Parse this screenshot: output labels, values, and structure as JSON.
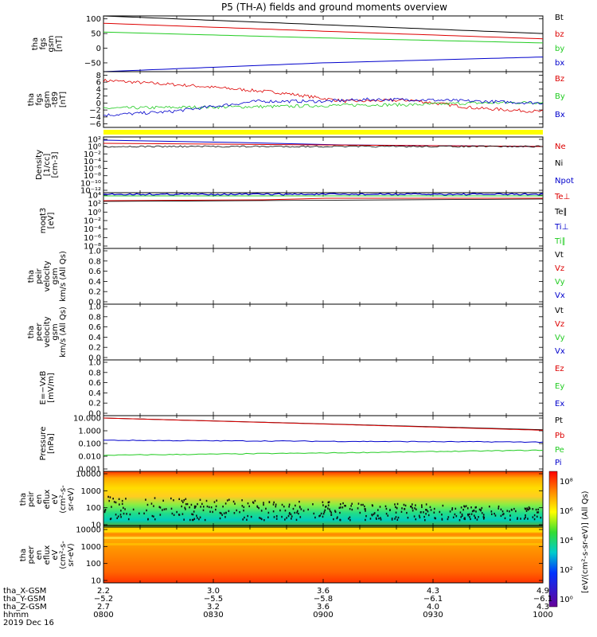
{
  "title": "P5 (TH-A) fields and ground moments overview",
  "date": "2019 Dec 16",
  "colors": {
    "black": "#000000",
    "red": "#dd0000",
    "green": "#22cc22",
    "blue": "#0000cc",
    "yellow": "#ffff00"
  },
  "chart_data": [
    {
      "type": "line",
      "panel": "fgs",
      "ylabel": [
        "tha",
        "fgs",
        "gsm",
        "[nT]"
      ],
      "yticks": [
        "100",
        "50",
        "0",
        "−50"
      ],
      "ylim": [
        -80,
        110
      ],
      "series": [
        {
          "name": "Bt",
          "color": "#000000",
          "values": [
            [
              0,
              110
            ],
            [
              0.5,
              80
            ],
            [
              1,
              50
            ]
          ]
        },
        {
          "name": "bz",
          "color": "#dd0000",
          "values": [
            [
              0,
              85
            ],
            [
              0.5,
              58
            ],
            [
              1,
              32
            ]
          ]
        },
        {
          "name": "by",
          "color": "#22cc22",
          "values": [
            [
              0,
              55
            ],
            [
              0.5,
              35
            ],
            [
              1,
              18
            ]
          ]
        },
        {
          "name": "bx",
          "color": "#0000cc",
          "values": [
            [
              0,
              -80
            ],
            [
              0.5,
              -50
            ],
            [
              1,
              -30
            ]
          ]
        }
      ]
    },
    {
      "type": "line",
      "panel": "fgs_dsl",
      "ylabel": [
        "tha",
        "fgs",
        "gsm",
        "-t89",
        "[nT]"
      ],
      "yticks": [
        "8",
        "6",
        "4",
        "2",
        "0",
        "−2",
        "−4",
        "−6"
      ],
      "ylim": [
        -7,
        9
      ],
      "series": [
        {
          "name": "Bz",
          "color": "#dd0000",
          "values": [
            [
              0,
              6.5
            ],
            [
              0.2,
              5
            ],
            [
              0.4,
              3
            ],
            [
              0.55,
              0.5
            ],
            [
              0.7,
              0.8
            ],
            [
              0.85,
              -1.5
            ],
            [
              1,
              -2.5
            ]
          ]
        },
        {
          "name": "By",
          "color": "#22cc22",
          "values": [
            [
              0,
              -1.5
            ],
            [
              0.2,
              -1.2
            ],
            [
              0.4,
              -1
            ],
            [
              0.6,
              -0.5
            ],
            [
              0.7,
              -0.5
            ],
            [
              0.85,
              0
            ],
            [
              1,
              0.2
            ]
          ]
        },
        {
          "name": "Bx",
          "color": "#0000cc",
          "values": [
            [
              0,
              -3.5
            ],
            [
              0.15,
              -2.5
            ],
            [
              0.35,
              0.5
            ],
            [
              0.5,
              0.5
            ],
            [
              0.6,
              1
            ],
            [
              0.7,
              1
            ],
            [
              0.85,
              0.5
            ],
            [
              1,
              0
            ]
          ]
        }
      ]
    },
    {
      "type": "line",
      "panel": "density",
      "ylabel": [
        "Density",
        "[1/cc]",
        "[cm-3]"
      ],
      "yticks": [
        "10²",
        "10⁰",
        "10⁻²",
        "10⁻⁴",
        "10⁻⁶",
        "10⁻⁸",
        "10⁻¹⁰",
        "10⁻¹²"
      ],
      "series": [
        {
          "name": "Ne",
          "color": "#dd0000"
        },
        {
          "name": "Ni",
          "color": "#000000"
        },
        {
          "name": "Npot",
          "color": "#0000cc"
        }
      ]
    },
    {
      "type": "line",
      "panel": "temp",
      "ylabel": [
        "moqt3",
        "[eV]"
      ],
      "yticks": [
        "10⁴",
        "10²",
        "10⁰",
        "10⁻²",
        "10⁻⁴",
        "10⁻⁶",
        "10⁻⁸"
      ],
      "series": [
        {
          "name": "Te⊥",
          "color": "#dd0000"
        },
        {
          "name": "Te∥",
          "color": "#000000"
        },
        {
          "name": "Ti⊥",
          "color": "#0000cc"
        },
        {
          "name": "Ti∥",
          "color": "#22cc22"
        }
      ]
    },
    {
      "type": "line",
      "panel": "peir",
      "ylabel": [
        "tha",
        "peir",
        "velocity",
        "gsm",
        "km/s (All Qs)"
      ],
      "yticks": [
        "1.0",
        "0.8",
        "0.6",
        "0.4",
        "0.2",
        "0.0"
      ],
      "series": [
        {
          "name": "Vt",
          "color": "#000000"
        },
        {
          "name": "Vz",
          "color": "#dd0000"
        },
        {
          "name": "Vy",
          "color": "#22cc22"
        },
        {
          "name": "Vx",
          "color": "#0000cc"
        }
      ]
    },
    {
      "type": "line",
      "panel": "peer",
      "ylabel": [
        "tha",
        "peer",
        "velocity",
        "gsm",
        "km/s (All Qs)"
      ],
      "yticks": [
        "1.0",
        "0.8",
        "0.6",
        "0.4",
        "0.2",
        "0.0"
      ],
      "series": [
        {
          "name": "Vt",
          "color": "#000000"
        },
        {
          "name": "Vz",
          "color": "#dd0000"
        },
        {
          "name": "Vy",
          "color": "#22cc22"
        },
        {
          "name": "Vx",
          "color": "#0000cc"
        }
      ]
    },
    {
      "type": "line",
      "panel": "efield",
      "ylabel": [
        "E=−VxB",
        "[mV/m]"
      ],
      "yticks": [
        "1.0",
        "0.8",
        "0.6",
        "0.4",
        "0.2",
        "0.0"
      ],
      "series": [
        {
          "name": "Ez",
          "color": "#dd0000"
        },
        {
          "name": "Ey",
          "color": "#22cc22"
        },
        {
          "name": "Ex",
          "color": "#0000cc"
        }
      ]
    },
    {
      "type": "line",
      "panel": "pressure",
      "ylabel": [
        "Pressure",
        "[nPa]"
      ],
      "yticks": [
        "10.000",
        "1.000",
        "0.100",
        "0.010",
        "0.001"
      ],
      "series": [
        {
          "name": "Pt",
          "color": "#000000",
          "values": [
            [
              0,
              10
            ],
            [
              0.5,
              3.5
            ],
            [
              1,
              1.2
            ]
          ]
        },
        {
          "name": "Pb",
          "color": "#dd0000",
          "values": [
            [
              0,
              10
            ],
            [
              0.5,
              3.4
            ],
            [
              1,
              1.1
            ]
          ]
        },
        {
          "name": "Pe",
          "color": "#22cc22",
          "values": [
            [
              0,
              0.012
            ],
            [
              0.5,
              0.018
            ],
            [
              1,
              0.03
            ]
          ]
        },
        {
          "name": "Pi",
          "color": "#0000cc",
          "values": [
            [
              0,
              0.18
            ],
            [
              0.5,
              0.15
            ],
            [
              1,
              0.13
            ]
          ]
        }
      ]
    },
    {
      "type": "heatmap",
      "panel": "peir_en",
      "ylabel": [
        "tha",
        "peir",
        "en",
        "eflux",
        "eV",
        "(cm²-s-",
        "sr-eV)"
      ],
      "yticks": [
        "10000",
        "1000",
        "100",
        "10"
      ]
    },
    {
      "type": "heatmap",
      "panel": "peer_en",
      "ylabel": [
        "tha",
        "peer",
        "en",
        "eflux",
        "eV",
        "(cm²-s-",
        "sr-eV)"
      ],
      "yticks": [
        "10000",
        "1000",
        "100",
        "10"
      ]
    }
  ],
  "colorbar": {
    "label": "[eV/(cm²-s-sr-eV)] (All Qs)",
    "ticks": [
      "10⁸",
      "10⁶",
      "10⁴",
      "10²",
      "10⁰"
    ]
  },
  "xaxis": {
    "rows": [
      {
        "name": "tha_X-GSM",
        "values": [
          "2.2",
          "3.0",
          "3.6",
          "4.3",
          "4.9"
        ]
      },
      {
        "name": "tha_Y-GSM",
        "values": [
          "−5.2",
          "−5.5",
          "−5.8",
          "−6.1",
          "−6.1"
        ]
      },
      {
        "name": "tha_Z-GSM",
        "values": [
          "2.7",
          "3.2",
          "3.6",
          "4.0",
          "4.3"
        ]
      },
      {
        "name": "hhmm",
        "values": [
          "0800",
          "0830",
          "0900",
          "0930",
          "1000"
        ]
      }
    ]
  }
}
